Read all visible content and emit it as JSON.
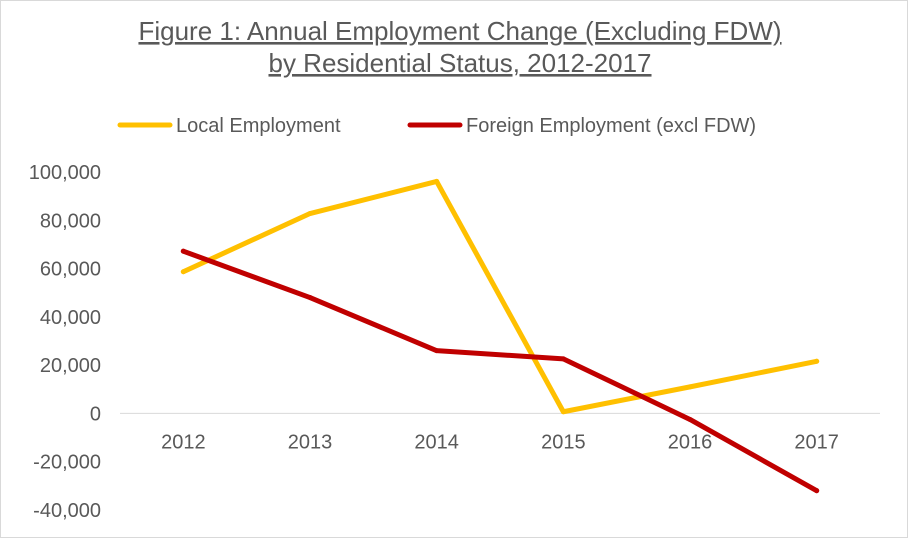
{
  "chart_data": {
    "type": "line",
    "title": "Figure 1: Annual Employment Change (Excluding FDW)",
    "subtitle": "by Residential Status, 2012-2017",
    "categories": [
      "2012",
      "2013",
      "2014",
      "2015",
      "2016",
      "2017"
    ],
    "series": [
      {
        "name": "Local Employment",
        "color": "#FFC000",
        "values": [
          58700,
          82800,
          96100,
          700,
          11000,
          21600
        ]
      },
      {
        "name": "Foreign Employment (excl FDW)",
        "color": "#C00000",
        "values": [
          67200,
          48000,
          26000,
          22600,
          -2500,
          -32000
        ]
      }
    ],
    "ylim": [
      -40000,
      100000
    ],
    "y_ticks": [
      "100,000",
      "80,000",
      "60,000",
      "40,000",
      "20,000",
      "0",
      "-20,000",
      "-40,000"
    ],
    "grid": false,
    "legend_position": "top",
    "xlabel": "",
    "ylabel": ""
  }
}
